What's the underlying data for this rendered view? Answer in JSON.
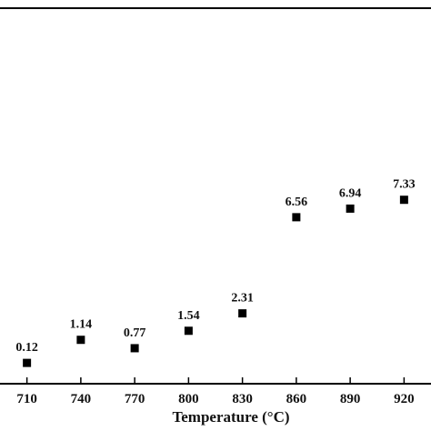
{
  "chart_data": {
    "type": "scatter",
    "title": "",
    "xlabel": "Temperature (°C)",
    "ylabel": "",
    "x_ticks": [
      "710",
      "740",
      "770",
      "800",
      "830",
      "860",
      "890",
      "920"
    ],
    "x": [
      710,
      740,
      770,
      800,
      830,
      860,
      890,
      920
    ],
    "values": [
      0.12,
      1.14,
      0.77,
      1.54,
      2.31,
      6.56,
      6.94,
      7.33
    ],
    "point_labels": [
      "0.12",
      "1.14",
      "0.77",
      "1.54",
      "2.31",
      "6.56",
      "6.94",
      "7.33"
    ],
    "xlim": [
      695,
      935
    ],
    "ylim": [
      -0.8,
      15.8
    ],
    "grid": false,
    "marker": "square",
    "color": "#000000"
  }
}
